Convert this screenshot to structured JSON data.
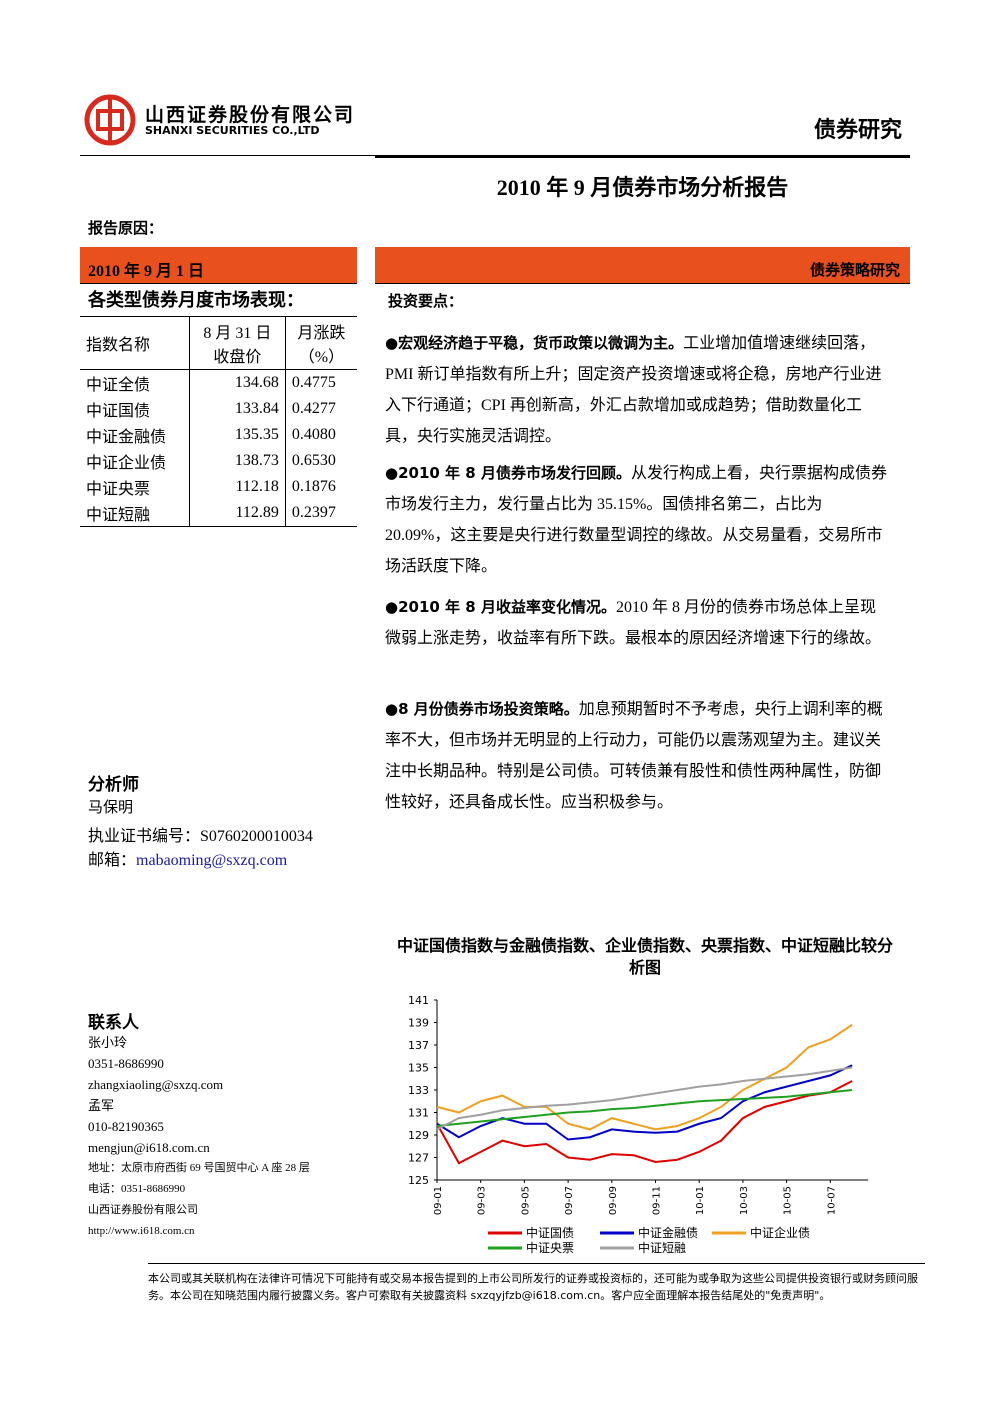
{
  "header": {
    "company_cn": "山西证券股份有限公司",
    "company_en": "SHANXI SECURITIES CO.,LTD",
    "section": "债券研究"
  },
  "title": "2010 年 9 月债券市场分析报告",
  "report_reason": "报告原因：",
  "date": "2010 年 9 月 1 日",
  "category": "债券策略研究",
  "table": {
    "title": "各类型债券月度市场表现：",
    "headers": [
      [
        "指数名称"
      ],
      [
        "8 月 31 日",
        "收盘价"
      ],
      [
        "月涨跌",
        "（%）"
      ]
    ],
    "rows": [
      [
        "中证全债",
        "134.68",
        "0.4775"
      ],
      [
        "中证国债",
        "133.84",
        "0.4277"
      ],
      [
        "中证金融债",
        "135.35",
        "0.4080"
      ],
      [
        "中证企业债",
        "138.73",
        "0.6530"
      ],
      [
        "中证央票",
        "112.18",
        "0.1876"
      ],
      [
        "中证短融",
        "112.89",
        "0.2397"
      ]
    ]
  },
  "analyst": {
    "label": "分析师",
    "name": "马保明",
    "cert": "执业证书编号：S0760200010034",
    "email_label": "邮箱：",
    "email": "mabaoming@sxzq.com"
  },
  "contact": {
    "label": "联系人",
    "lines": [
      "张小玲",
      "0351-8686990",
      "zhangxiaoling@sxzq.com",
      "孟军",
      "010-82190365",
      "mengjun@i618.com.cn",
      "地址：太原市府西街 69 号国贸中心 A 座 28 层",
      "电话：0351-8686990",
      "山西证券股份有限公司",
      "http://www.i618.com.cn"
    ]
  },
  "key_points": {
    "label": "投资要点：",
    "items": [
      {
        "heading": "●宏观经济趋于平稳，货币政策以微调为主。",
        "body": "工业增加值增速继续回落，PMI 新订单指数有所上升；固定资产投资增速或将企稳，房地产行业进入下行通道；CPI 再创新高，外汇占款增加或成趋势；借助数量化工具，央行实施灵活调控。"
      },
      {
        "heading": "●2010 年 8 月债券市场发行回顾。",
        "body": "从发行构成上看，央行票据构成债券市场发行主力，发行量占比为 35.15%。国债排名第二，占比为 20.09%，这主要是央行进行数量型调控的缘故。从交易量看，交易所市场活跃度下降。"
      },
      {
        "heading": "●2010 年 8 月收益率变化情况。",
        "body": "2010 年 8 月份的债券市场总体上呈现微弱上涨走势，收益率有所下跌。最根本的原因经济增速下行的缘故。"
      },
      {
        "heading": "●8 月份债券市场投资策略。",
        "body": "加息预期暂时不予考虑，央行上调利率的概率不大，但市场并无明显的上行动力，可能仍以震荡观望为主。建议关注中长期品种。特别是公司债。可转债兼有股性和债性两种属性，防御性较好，还具备成长性。应当积极参与。"
      }
    ]
  },
  "chart_data": {
    "type": "line",
    "title": "中证国债指数与金融债指数、企业债指数、央票指数、中证短融比较分析图",
    "categories": [
      "09-01",
      null,
      "09-03",
      null,
      "09-05",
      null,
      "09-07",
      null,
      "09-09",
      null,
      "09-11",
      null,
      "10-01",
      null,
      "10-03",
      null,
      "10-05",
      null,
      "10-07",
      null
    ],
    "ylim": [
      125,
      141
    ],
    "yticks": [
      125,
      127,
      129,
      131,
      133,
      135,
      137,
      139,
      141
    ],
    "series": [
      {
        "name": "中证国债",
        "color": "#e00000",
        "values": [
          130,
          126.5,
          127.5,
          128.5,
          128,
          128.2,
          127,
          126.8,
          127.3,
          127.2,
          126.6,
          126.8,
          127.5,
          128.5,
          130.5,
          131.5,
          132,
          132.5,
          132.8,
          133.8
        ]
      },
      {
        "name": "中证金融债",
        "color": "#0000c8",
        "values": [
          130,
          128.8,
          129.8,
          130.5,
          130,
          130,
          128.6,
          128.8,
          129.5,
          129.3,
          129.2,
          129.3,
          130,
          130.5,
          132,
          132.8,
          133.3,
          133.8,
          134.3,
          135.2
        ]
      },
      {
        "name": "中证企业债",
        "color": "#f0a020",
        "values": [
          131.5,
          131,
          132,
          132.5,
          131.5,
          131.5,
          130,
          129.5,
          130.5,
          130,
          129.5,
          129.8,
          130.5,
          131.5,
          133,
          134,
          135,
          136.8,
          137.5,
          138.8
        ]
      },
      {
        "name": "中证央票",
        "color": "#20a020",
        "values": [
          129.8,
          130,
          130.2,
          130.4,
          130.6,
          130.8,
          131,
          131.1,
          131.3,
          131.4,
          131.6,
          131.8,
          132,
          132.1,
          132.2,
          132.3,
          132.4,
          132.6,
          132.8,
          133
        ]
      },
      {
        "name": "中证短融",
        "color": "#a0a0a0",
        "values": [
          129.5,
          130.5,
          130.8,
          131.2,
          131.4,
          131.6,
          131.7,
          131.9,
          132.1,
          132.4,
          132.7,
          133,
          133.3,
          133.5,
          133.8,
          134,
          134.2,
          134.4,
          134.7,
          135
        ]
      }
    ]
  },
  "disclaimer": "本公司或其关联机构在法律许可情况下可能持有或交易本报告提到的上市公司所发行的证券或投资标的，还可能为或争取为这些公司提供投资银行或财务顾问服务。本公司在知晓范围内履行披露义务。客户可索取有关披露资料 sxzqyjfzb@i618.com.cn。客户应全面理解本报告结尾处的\"免责声明\"。"
}
